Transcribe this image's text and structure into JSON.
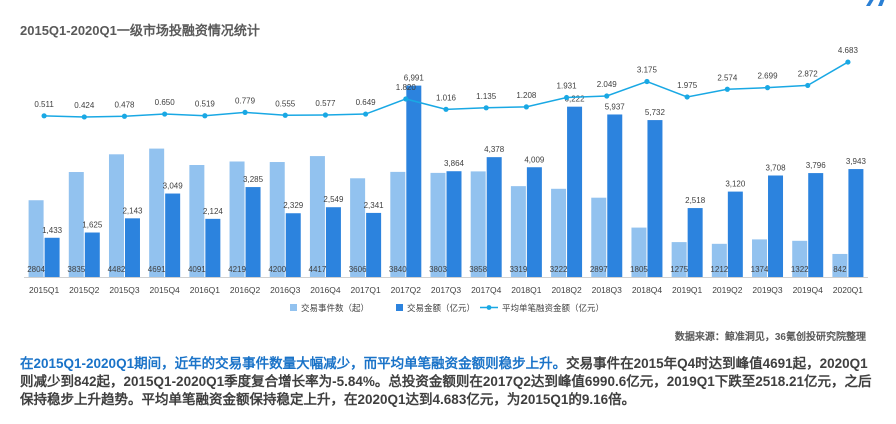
{
  "chart_data": {
    "type": "bar",
    "title": "2015Q1-2020Q1一级市场投融资情况统计",
    "categories": [
      "2015Q1",
      "2015Q2",
      "2015Q3",
      "2015Q4",
      "2016Q1",
      "2016Q2",
      "2016Q3",
      "2016Q4",
      "2017Q1",
      "2017Q2",
      "2017Q3",
      "2017Q4",
      "2018Q1",
      "2018Q2",
      "2018Q3",
      "2018Q4",
      "2019Q1",
      "2019Q2",
      "2019Q3",
      "2019Q4",
      "2020Q1"
    ],
    "series": [
      {
        "name": "交易事件数（起）",
        "type": "bar",
        "color": "#92c2ef",
        "values": [
          2804,
          3835,
          4482,
          4691,
          4091,
          4219,
          4200,
          4417,
          3606,
          3840,
          3803,
          3858,
          3319,
          3222,
          2897,
          1805,
          1275,
          1212,
          1374,
          1322,
          842
        ],
        "labels": [
          "2804",
          "3835",
          "4482",
          "4691",
          "4091",
          "4219",
          "4200",
          "4417",
          "3606",
          "3840",
          "3803",
          "3858",
          "3319",
          "3222",
          "2897",
          "1805",
          "1275",
          "1212",
          "1374",
          "1322",
          "842"
        ]
      },
      {
        "name": "交易金额（亿元）",
        "type": "bar",
        "color": "#2c83de",
        "values": [
          1433,
          1625,
          2143,
          3049,
          2124,
          3285,
          2329,
          2549,
          2341,
          6991,
          3864,
          4378,
          4009,
          6222,
          5937,
          5732,
          2518,
          3120,
          3708,
          3796,
          3943
        ],
        "labels": [
          "1,433",
          "1,625",
          "2,143",
          "3,049",
          "2,124",
          "3,285",
          "2,329",
          "2,549",
          "2,341",
          "6,991",
          "3,864",
          "4,378",
          "4,009",
          "6,222",
          "5,937",
          "5,732",
          "2,518",
          "3,120",
          "3,708",
          "3,796",
          "3,943"
        ]
      },
      {
        "name": "平均单笔融资金额（亿元）",
        "type": "line",
        "color": "#19a8e4",
        "values": [
          0.511,
          0.424,
          0.478,
          0.65,
          0.519,
          0.779,
          0.555,
          0.577,
          0.649,
          1.82,
          1.016,
          1.135,
          1.208,
          1.931,
          2.049,
          3.175,
          1.975,
          2.574,
          2.699,
          2.872,
          4.683
        ],
        "labels": [
          "0.511",
          "0.424",
          "0.478",
          "0.650",
          "0.519",
          "0.779",
          "0.555",
          "0.577",
          "0.649",
          "1.820",
          "1.016",
          "1.135",
          "1.208",
          "1.931",
          "2.049",
          "3.175",
          "1.975",
          "2.574",
          "2.699",
          "2.872",
          "4.683"
        ]
      }
    ],
    "bar_ylim": [
      0,
      8000
    ],
    "line_ylim": [
      -12,
      5
    ],
    "legend_position": "bottom"
  },
  "source_text": "数据来源：鲸准洞见，36氪创投研究院整理",
  "summary": {
    "highlight": "在2015Q1-2020Q1期间，近年的交易事件数量大幅减少，而平均单笔融资金额则稳步上升。",
    "body": "交易事件在2015年Q4时达到峰值4691起，2020Q1则减少到842起，2015Q1-2020Q1季度复合增长率为-5.84%。总投资金额则在2017Q2达到峰值6990.6亿元，2019Q1下跌至2518.21亿元，之后保持稳步上升趋势。平均单笔融资金额保持稳定上升，在2020Q1达到4.683亿元，为2015Q1的9.16倍。"
  },
  "colors": {
    "accent": "#1a73c8"
  }
}
